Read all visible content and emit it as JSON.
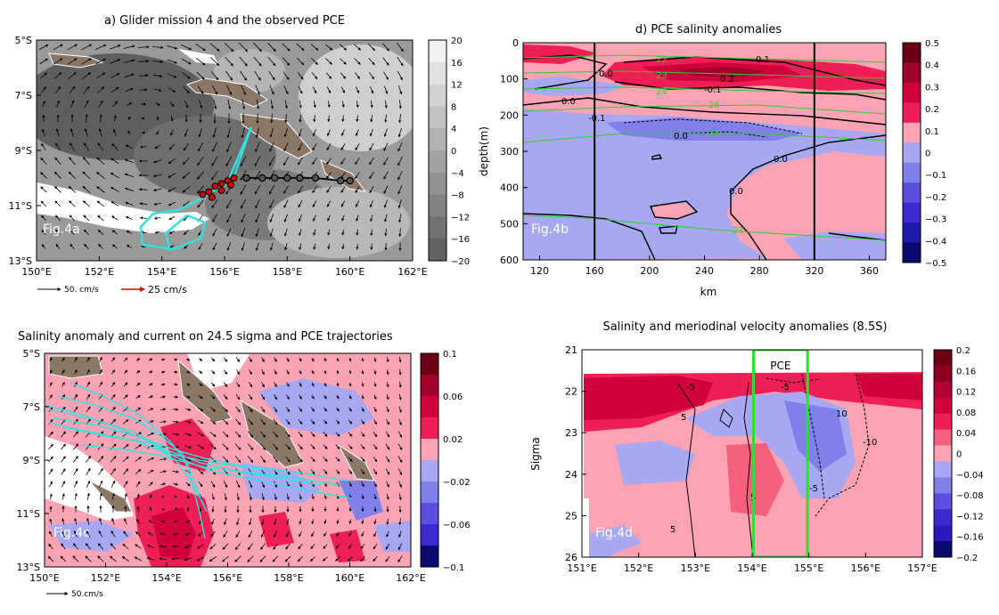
{
  "chart_data": [
    {
      "id": "a",
      "type": "heatmap",
      "title": "a) Glider mission 4 and the observed PCE",
      "panel_label": "Fig.4a",
      "x_ticks": [
        "150°E",
        "152°E",
        "154°E",
        "156°E",
        "158°E",
        "160°E",
        "162°E"
      ],
      "x_range": [
        150,
        162
      ],
      "y_ticks": [
        "5°S",
        "7°S",
        "9°S",
        "11°S",
        "13°S"
      ],
      "y_range": [
        -5,
        -13
      ],
      "colorbar": {
        "labels": [
          "20",
          "16",
          "12",
          "8",
          "4",
          "0",
          "−4",
          "−8",
          "−12",
          "−16",
          "−20"
        ],
        "range": [
          -20,
          20
        ],
        "colors": [
          "#f2f2f2",
          "#e2e2e2",
          "#d2d2d2",
          "#c2c2c2",
          "#b2b2b2",
          "#a2a2a2",
          "#929292",
          "#828282",
          "#727272",
          "#626262"
        ]
      },
      "glider_track": {
        "color": "#000000",
        "points": [
          [
            156.7,
            -10.0
          ],
          [
            157.2,
            -10.0
          ],
          [
            157.6,
            -10.0
          ],
          [
            158.0,
            -10.0
          ],
          [
            158.4,
            -10.0
          ],
          [
            158.9,
            -10.0
          ],
          [
            159.7,
            -10.1
          ],
          [
            160.0,
            -10.1
          ]
        ]
      },
      "pce_stations": [
        [
          155.3,
          -10.6
        ],
        [
          155.5,
          -10.5
        ],
        [
          155.7,
          -10.3
        ],
        [
          155.9,
          -10.2
        ],
        [
          156.1,
          -10.1
        ],
        [
          156.3,
          -10.0
        ],
        [
          155.6,
          -10.7
        ],
        [
          155.9,
          -10.45
        ],
        [
          156.2,
          -10.25
        ]
      ],
      "pce_trajectory_color": "#36e0e0",
      "scale_labels": [
        "50. cm/s",
        "25 cm/s"
      ]
    },
    {
      "id": "b",
      "type": "heatmap",
      "title": "d) PCE salinity anomalies",
      "panel_label": "Fig.4b",
      "xlabel": "km",
      "ylabel": "depth(m)",
      "x_ticks": [
        "120",
        "160",
        "200",
        "240",
        "280",
        "320",
        "360"
      ],
      "x_range": [
        108,
        372
      ],
      "y_ticks": [
        "0",
        "100",
        "200",
        "300",
        "400",
        "500",
        "600"
      ],
      "y_range": [
        0,
        600
      ],
      "vertical_lines": [
        160,
        320
      ],
      "contour_labels": [
        "0.0",
        "0.1",
        "-0.1",
        "0.2",
        "0.0",
        "-0.1",
        "0.0",
        "0.0",
        "0.0"
      ],
      "isopycnal_labels": [
        "22",
        "23",
        "24",
        "26",
        "25",
        "27"
      ],
      "colorbar": {
        "labels": [
          "0.5",
          "0.4",
          "0.3",
          "0.2",
          "0.1",
          "0",
          "−0.1",
          "−0.2",
          "−0.3",
          "−0.4",
          "−0.5"
        ],
        "range": [
          -0.5,
          0.5
        ],
        "colors": [
          "#6b0012",
          "#a1002a",
          "#d1003d",
          "#ee1f55",
          "#f9a3b4",
          "#a7a7f2",
          "#8080ea",
          "#5c4fe0",
          "#3c2ad0",
          "#1c1ab0",
          "#0a0a70"
        ]
      }
    },
    {
      "id": "c",
      "type": "heatmap",
      "title": "Salinity anomaly and current on 24.5 sigma and PCE trajectories",
      "panel_label": "Fig.4c",
      "x_ticks": [
        "150°E",
        "152°E",
        "154°E",
        "156°E",
        "158°E",
        "160°E",
        "162°E"
      ],
      "x_range": [
        150,
        162
      ],
      "y_ticks": [
        "5°S",
        "7°S",
        "9°S",
        "11°S",
        "13°S"
      ],
      "y_range": [
        -5,
        -13
      ],
      "colorbar": {
        "labels": [
          "0.1",
          "0.06",
          "0.02",
          "−0.02",
          "−0.06",
          "−0.1"
        ],
        "range": [
          -0.1,
          0.1
        ],
        "colors": [
          "#6b0012",
          "#a1002a",
          "#d1003d",
          "#ee1f55",
          "#f9a3b4",
          "#a7a7f2",
          "#8080ea",
          "#5c4fe0",
          "#3c2ad0",
          "#0a0a70"
        ]
      },
      "scale_label": "50.cm/s"
    },
    {
      "id": "d",
      "type": "heatmap",
      "title": "Salinity and meriodinal velocity anomalies (8.5S)",
      "panel_label": "Fig.4d",
      "ylabel": "Sigma",
      "x_ticks": [
        "151°E",
        "152°E",
        "153°E",
        "154°E",
        "155°E",
        "156°E",
        "157°E"
      ],
      "x_range": [
        151,
        157
      ],
      "y_ticks": [
        "21",
        "22",
        "23",
        "24",
        "25",
        "26"
      ],
      "y_range": [
        21,
        26
      ],
      "box_label": "PCE",
      "box_range": [
        154,
        155
      ],
      "box_color": "#33dd33",
      "contour_labels": [
        "5",
        "-5",
        "10",
        "-5",
        "-10",
        "5",
        "-5",
        "5"
      ],
      "colorbar": {
        "labels": [
          "0.2",
          "0.16",
          "0.12",
          "0.08",
          "0.04",
          "0",
          "−0.04",
          "−0.08",
          "−0.12",
          "−0.16",
          "−0.2"
        ],
        "range": [
          -0.2,
          0.2
        ],
        "colors": [
          "#6b0012",
          "#8e0020",
          "#b10032",
          "#d1003d",
          "#ee1f55",
          "#f4607e",
          "#f9a3b4",
          "#a7a7f2",
          "#8080ea",
          "#5c4fe0",
          "#3c2ad0",
          "#2a1abc",
          "#0a0a70"
        ]
      }
    }
  ]
}
